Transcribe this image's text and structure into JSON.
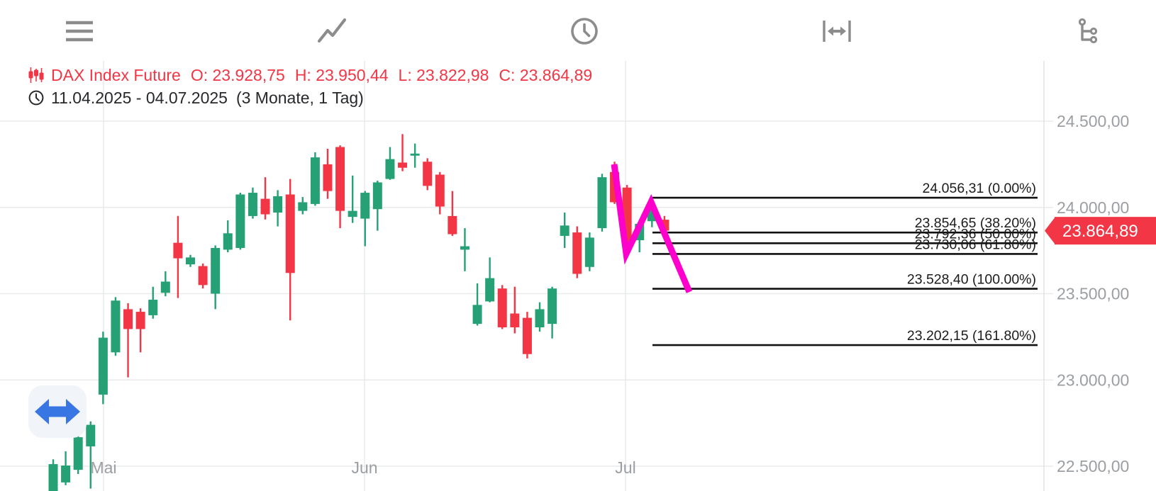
{
  "toolbar": {
    "icons": [
      {
        "name": "menu-icon"
      },
      {
        "name": "trend-line-icon"
      },
      {
        "name": "clock-icon"
      },
      {
        "name": "horizontal-range-icon"
      },
      {
        "name": "branch-icon"
      }
    ]
  },
  "header": {
    "instrument": "DAX Index Future",
    "ohlc_items": [
      {
        "k": "O:",
        "v": "23.928,75"
      },
      {
        "k": "H:",
        "v": "23.950,44"
      },
      {
        "k": "L:",
        "v": "23.822,98"
      },
      {
        "k": "C:",
        "v": "23.864,89"
      }
    ],
    "date_range": "11.04.2025 - 04.07.2025",
    "period": "(3 Monate, 1 Tag)"
  },
  "colors": {
    "up": "#26a175",
    "down": "#f23645",
    "accent_red": "#f23645",
    "drawing": "#ff00cc",
    "grid": "#e8eaec",
    "axis_text": "#9b9fa3",
    "fib_line": "#111111",
    "fib_text": "#1b1b1b",
    "icon_gray": "#8c8c8c",
    "pan_blue": "#3876e4",
    "tag_text": "#ffffff"
  },
  "chart_data": {
    "type": "candlestick",
    "instrument": "DAX Index Future",
    "interval": "1 Tag",
    "range_label": "3 Monate",
    "ylim": [
      22356,
      24853
    ],
    "grid": true,
    "y_ticks": [
      {
        "label": "24.500,00",
        "price": 24500
      },
      {
        "label": "24.000,00",
        "price": 24000
      },
      {
        "label": "23.500,00",
        "price": 23500
      },
      {
        "label": "23.000,00",
        "price": 23000
      },
      {
        "label": "22.500,00",
        "price": 22500
      }
    ],
    "x_labels": [
      {
        "label": "Mai",
        "x": 146
      },
      {
        "label": "Jun",
        "x": 514
      },
      {
        "label": "Jul",
        "x": 882
      }
    ],
    "candles": [
      [
        22340,
        22540,
        22290,
        22512
      ],
      [
        22406,
        22586,
        22390,
        22504
      ],
      [
        22479,
        22700,
        22455,
        22668
      ],
      [
        22615,
        22760,
        22370,
        22740
      ],
      [
        22915,
        23280,
        22860,
        23245
      ],
      [
        23160,
        23480,
        23140,
        23460
      ],
      [
        23410,
        23445,
        23015,
        23295
      ],
      [
        23395,
        23415,
        23160,
        23295
      ],
      [
        23375,
        23540,
        23355,
        23465
      ],
      [
        23505,
        23630,
        23485,
        23570
      ],
      [
        23795,
        23950,
        23475,
        23705
      ],
      [
        23670,
        23725,
        23655,
        23710
      ],
      [
        23660,
        23675,
        23530,
        23550
      ],
      [
        23500,
        23780,
        23410,
        23765
      ],
      [
        23755,
        23925,
        23740,
        23850
      ],
      [
        23765,
        24085,
        23755,
        24075
      ],
      [
        23950,
        24115,
        23935,
        24085
      ],
      [
        24050,
        24175,
        23930,
        23960
      ],
      [
        23970,
        24100,
        23890,
        24065
      ],
      [
        24075,
        24165,
        23345,
        23620
      ],
      [
        23980,
        24060,
        23960,
        24030
      ],
      [
        24020,
        24320,
        24010,
        24290
      ],
      [
        24250,
        24340,
        24050,
        24095
      ],
      [
        24350,
        24360,
        23880,
        23980
      ],
      [
        23945,
        24185,
        23910,
        23980
      ],
      [
        23935,
        24095,
        23775,
        24085
      ],
      [
        23990,
        24155,
        23865,
        24145
      ],
      [
        24165,
        24350,
        24160,
        24280
      ],
      [
        24260,
        24425,
        24210,
        24230
      ],
      [
        24300,
        24370,
        24230,
        24312
      ],
      [
        24265,
        24285,
        24100,
        24125
      ],
      [
        24190,
        24205,
        23960,
        24005
      ],
      [
        23950,
        24095,
        23835,
        23845
      ],
      [
        23755,
        23880,
        23630,
        23775
      ],
      [
        23325,
        23560,
        23315,
        23435
      ],
      [
        23455,
        23710,
        23450,
        23590
      ],
      [
        23530,
        23550,
        23295,
        23305
      ],
      [
        23385,
        23540,
        23270,
        23305
      ],
      [
        23360,
        23395,
        23125,
        23150
      ],
      [
        23305,
        23450,
        23280,
        23410
      ],
      [
        23325,
        23540,
        23240,
        23530
      ],
      [
        23835,
        23970,
        23765,
        23895
      ],
      [
        23855,
        23890,
        23590,
        23615
      ],
      [
        23655,
        23855,
        23630,
        23825
      ],
      [
        23880,
        24195,
        23860,
        24175
      ],
      [
        24205,
        24265,
        24020,
        24030
      ],
      [
        24115,
        24130,
        23732,
        23765
      ],
      [
        23810,
        23915,
        23740,
        23905
      ],
      [
        23920,
        24056.31,
        23885,
        23995
      ],
      [
        23928.75,
        23950.44,
        23822.98,
        23864.89
      ]
    ],
    "fibonacci": {
      "x_start": 920,
      "x_end": 1463,
      "levels": [
        {
          "label": "24.056,31 (0.00%)",
          "price": 24056.31,
          "pct": 0
        },
        {
          "label": "23.854,65 (38.20%)",
          "price": 23854.65,
          "pct": 38.2
        },
        {
          "label": "23.792,36 (50.00%)",
          "price": 23792.36,
          "pct": 50
        },
        {
          "label": "23.730,06 (61.80%)",
          "price": 23730.06,
          "pct": 61.8
        },
        {
          "label": "23.528,40 (100.00%)",
          "price": 23528.4,
          "pct": 100
        },
        {
          "label": "23.202,15 (161.80%)",
          "price": 23202.15,
          "pct": 161.8
        }
      ]
    },
    "drawing": {
      "type": "zigzag",
      "points": [
        {
          "x": 866,
          "price": 24250
        },
        {
          "x": 883,
          "price": 23732
        },
        {
          "x": 918,
          "price": 24032
        },
        {
          "x": 972,
          "price": 23510
        }
      ]
    },
    "last_price": {
      "label": "23.864,89",
      "price": 23864.89
    }
  }
}
